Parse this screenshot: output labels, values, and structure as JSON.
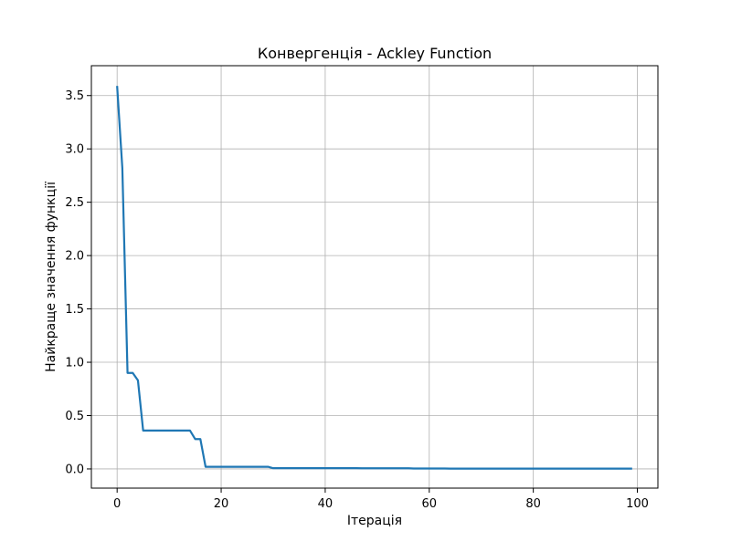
{
  "chart_data": {
    "type": "line",
    "title": "Конвергенція - Ackley Function",
    "xlabel": "Ітерація",
    "ylabel": "Найкраще значення функції",
    "xlim": [
      -4.95,
      103.95
    ],
    "ylim": [
      -0.18,
      3.78
    ],
    "xticks": [
      0,
      20,
      40,
      60,
      80,
      100
    ],
    "yticks": [
      0.0,
      0.5,
      1.0,
      1.5,
      2.0,
      2.5,
      3.0,
      3.5
    ],
    "xtick_labels": [
      "0",
      "20",
      "40",
      "60",
      "80",
      "100"
    ],
    "ytick_labels": [
      "0.0",
      "0.5",
      "1.0",
      "1.5",
      "2.0",
      "2.5",
      "3.0",
      "3.5"
    ],
    "grid": true,
    "colors": {
      "line": "#1f77b4",
      "grid": "#b0b0b0",
      "axis": "#000000"
    },
    "series": [
      {
        "x": [
          0,
          1,
          2,
          3,
          4,
          5,
          6,
          7,
          8,
          9,
          10,
          11,
          12,
          13,
          14,
          15,
          16,
          17,
          18,
          19,
          20,
          21,
          22,
          23,
          24,
          25,
          26,
          27,
          28,
          29,
          30,
          31,
          32,
          33,
          34,
          35,
          36,
          37,
          38,
          39,
          40,
          41,
          42,
          43,
          44,
          45,
          46,
          47,
          48,
          49,
          50,
          51,
          52,
          53,
          54,
          55,
          56,
          57,
          58,
          59,
          60,
          61,
          62,
          63,
          64,
          65,
          66,
          67,
          68,
          69,
          70,
          71,
          72,
          73,
          74,
          75,
          76,
          77,
          78,
          79,
          80,
          81,
          82,
          83,
          84,
          85,
          86,
          87,
          88,
          89,
          90,
          91,
          92,
          93,
          94,
          95,
          96,
          97,
          98,
          99
        ],
        "values": [
          3.59,
          2.82,
          0.9,
          0.9,
          0.83,
          0.36,
          0.36,
          0.36,
          0.36,
          0.36,
          0.36,
          0.36,
          0.36,
          0.36,
          0.36,
          0.28,
          0.28,
          0.02,
          0.02,
          0.02,
          0.02,
          0.02,
          0.02,
          0.02,
          0.02,
          0.02,
          0.02,
          0.02,
          0.02,
          0.02,
          0.007,
          0.007,
          0.007,
          0.007,
          0.007,
          0.007,
          0.007,
          0.007,
          0.007,
          0.007,
          0.007,
          0.007,
          0.007,
          0.007,
          0.007,
          0.007,
          0.007,
          0.006,
          0.006,
          0.006,
          0.006,
          0.006,
          0.006,
          0.006,
          0.006,
          0.006,
          0.006,
          0.004,
          0.004,
          0.004,
          0.004,
          0.004,
          0.004,
          0.004,
          0.003,
          0.003,
          0.003,
          0.003,
          0.003,
          0.003,
          0.003,
          0.003,
          0.003,
          0.003,
          0.003,
          0.003,
          0.003,
          0.003,
          0.003,
          0.003,
          0.003,
          0.003,
          0.003,
          0.003,
          0.003,
          0.003,
          0.003,
          0.003,
          0.003,
          0.003,
          0.003,
          0.003,
          0.003,
          0.003,
          0.003,
          0.003,
          0.003,
          0.003,
          0.003,
          0.003
        ]
      }
    ]
  }
}
